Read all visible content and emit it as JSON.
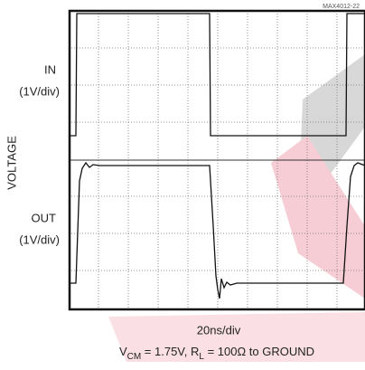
{
  "chart_data": {
    "type": "scope",
    "figure_id": "MAX4012-22",
    "y_label": "VOLTAGE",
    "channels": [
      {
        "name": "IN",
        "scale": "(1V/div)"
      },
      {
        "name": "OUT",
        "scale": "(1V/div)"
      }
    ],
    "x_label": "20ns/div",
    "note": [
      "V",
      "CM",
      " = 1.75V, R",
      "L",
      " = 100Ω to GROUND"
    ]
  }
}
